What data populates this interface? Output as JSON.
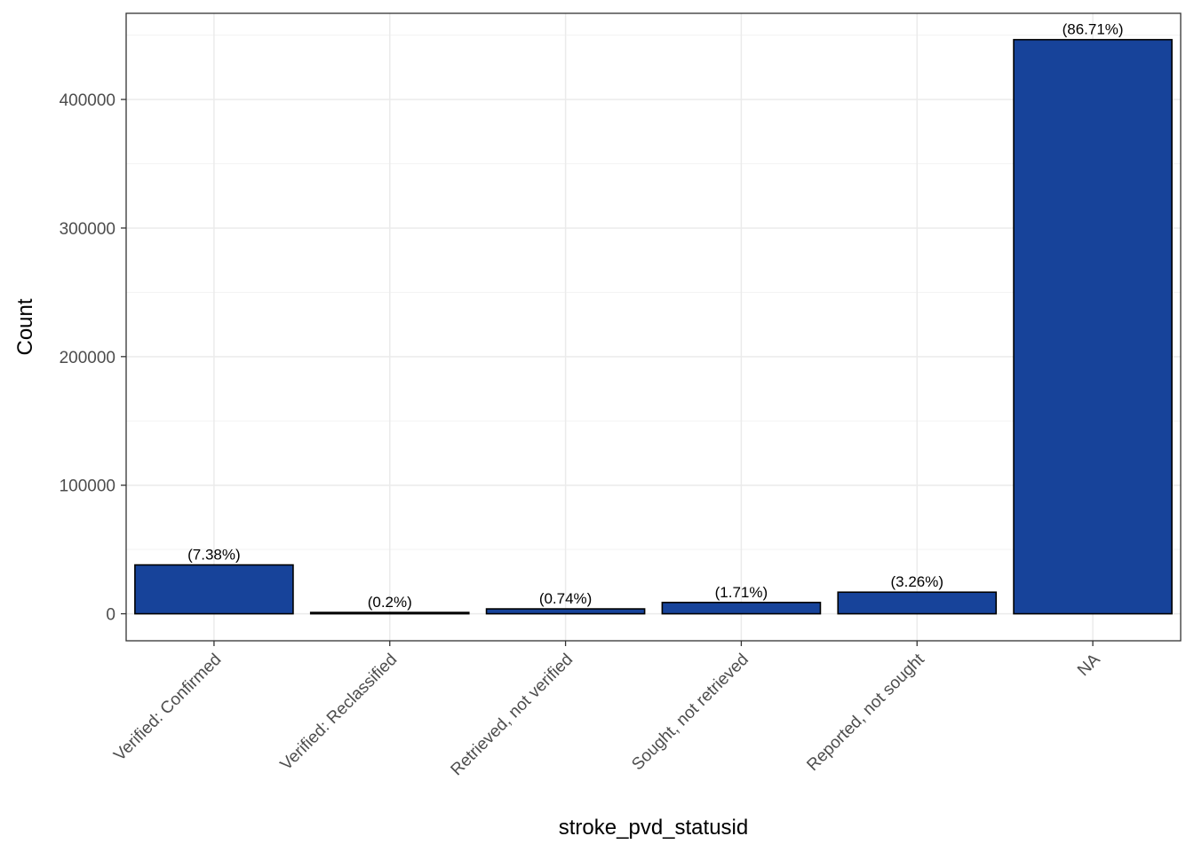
{
  "chart_data": {
    "type": "bar",
    "title": "",
    "xlabel": "stroke_pvd_statusid",
    "ylabel": "Count",
    "categories": [
      "Verified: Confirmed",
      "Verified: Reclassified",
      "Retrieved, not verified",
      "Sought, not retrieved",
      "Reported, not sought",
      "NA"
    ],
    "values": [
      38000,
      1030,
      3800,
      8800,
      16800,
      446500
    ],
    "data_labels": [
      "(7.38%)",
      "(0.2%)",
      "(0.74%)",
      "(1.71%)",
      "(3.26%)",
      "(86.71%)"
    ],
    "ylim": [
      -21000,
      467000
    ],
    "yticks": [
      0,
      100000,
      200000,
      300000,
      400000
    ],
    "ytick_labels": [
      "0",
      "100000",
      "200000",
      "300000",
      "400000"
    ],
    "grid": true,
    "legend": "none",
    "colors": {
      "bar_fill": "#17439a",
      "bar_stroke": "#000000",
      "grid_major": "#ebebeb",
      "grid_minor": "#f3f3f3",
      "panel_border": "#333333"
    }
  }
}
